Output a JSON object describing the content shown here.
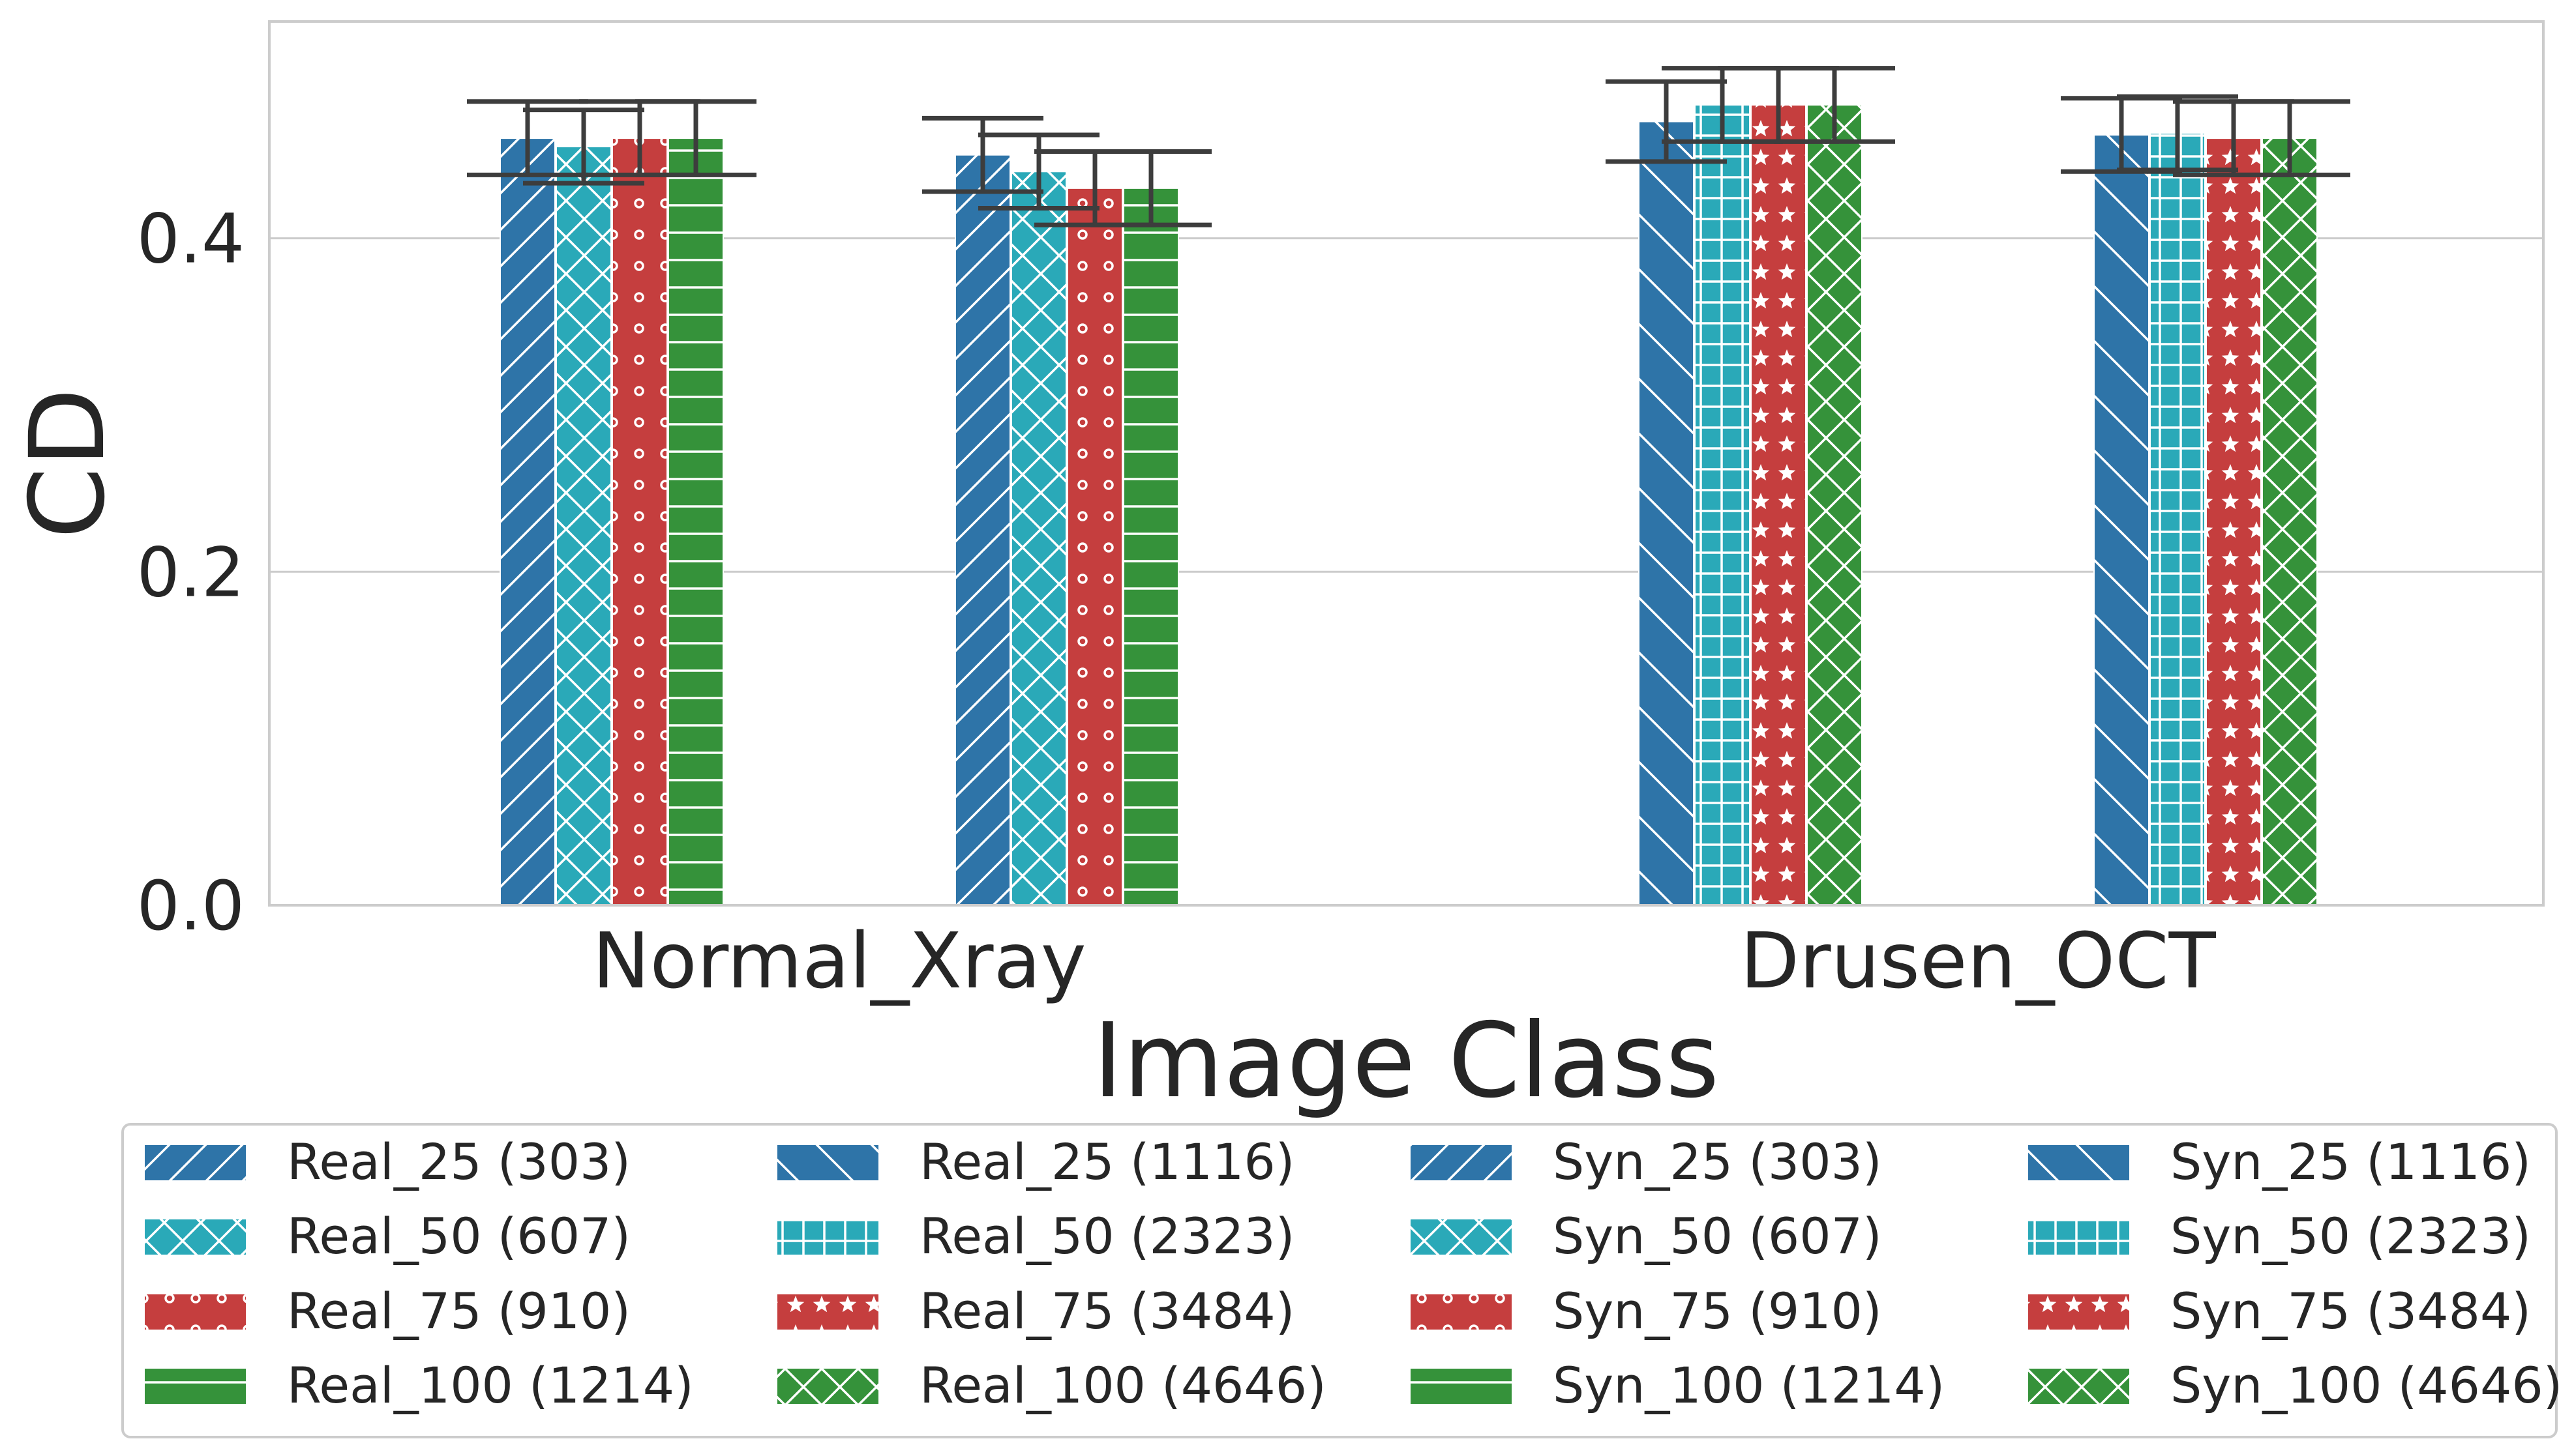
{
  "chart_data": {
    "type": "bar",
    "title": "",
    "xlabel": "Image Class",
    "ylabel": "CD",
    "ylim": [
      0,
      0.53
    ],
    "yticks": [
      "0.0",
      "0.2",
      "0.4"
    ],
    "categories": [
      "Normal_Xray",
      "Drusen_OCT"
    ],
    "series": [
      {
        "name": "Real_25 (303)",
        "group": "Normal_Xray",
        "subgroup": "Real",
        "color": "#2e74a8",
        "pattern": "diag-fwd",
        "value": 0.46,
        "err": 0.022
      },
      {
        "name": "Real_50 (607)",
        "group": "Normal_Xray",
        "subgroup": "Real",
        "color": "#2aa9b8",
        "pattern": "cross-x",
        "value": 0.455,
        "err": 0.022
      },
      {
        "name": "Real_75 (910)",
        "group": "Normal_Xray",
        "subgroup": "Real",
        "color": "#c53e3e",
        "pattern": "rings",
        "value": 0.46,
        "err": 0.022
      },
      {
        "name": "Real_100 (1214)",
        "group": "Normal_Xray",
        "subgroup": "Real",
        "color": "#35923a",
        "pattern": "hlines",
        "value": 0.46,
        "err": 0.022
      },
      {
        "name": "Syn_25 (303)",
        "group": "Normal_Xray",
        "subgroup": "Syn",
        "color": "#2e74a8",
        "pattern": "diag-fwd",
        "value": 0.45,
        "err": 0.022
      },
      {
        "name": "Syn_50 (607)",
        "group": "Normal_Xray",
        "subgroup": "Syn",
        "color": "#2aa9b8",
        "pattern": "cross-x",
        "value": 0.44,
        "err": 0.022
      },
      {
        "name": "Syn_75 (910)",
        "group": "Normal_Xray",
        "subgroup": "Syn",
        "color": "#c53e3e",
        "pattern": "rings",
        "value": 0.43,
        "err": 0.022
      },
      {
        "name": "Syn_100 (1214)",
        "group": "Normal_Xray",
        "subgroup": "Syn",
        "color": "#35923a",
        "pattern": "hlines",
        "value": 0.43,
        "err": 0.022
      },
      {
        "name": "Real_25 (1116)",
        "group": "Drusen_OCT",
        "subgroup": "Real",
        "color": "#2e74a8",
        "pattern": "diag-back",
        "value": 0.47,
        "err": 0.024
      },
      {
        "name": "Real_50 (2323)",
        "group": "Drusen_OCT",
        "subgroup": "Real",
        "color": "#2aa9b8",
        "pattern": "grid",
        "value": 0.48,
        "err": 0.022
      },
      {
        "name": "Real_75 (3484)",
        "group": "Drusen_OCT",
        "subgroup": "Real",
        "color": "#c53e3e",
        "pattern": "stars",
        "value": 0.48,
        "err": 0.022
      },
      {
        "name": "Real_100 (4646)",
        "group": "Drusen_OCT",
        "subgroup": "Real",
        "color": "#35923a",
        "pattern": "cross-x",
        "value": 0.48,
        "err": 0.022
      },
      {
        "name": "Syn_25 (1116)",
        "group": "Drusen_OCT",
        "subgroup": "Syn",
        "color": "#2e74a8",
        "pattern": "diag-back",
        "value": 0.462,
        "err": 0.022
      },
      {
        "name": "Syn_50 (2323)",
        "group": "Drusen_OCT",
        "subgroup": "Syn",
        "color": "#2aa9b8",
        "pattern": "grid",
        "value": 0.463,
        "err": 0.022
      },
      {
        "name": "Syn_75 (3484)",
        "group": "Drusen_OCT",
        "subgroup": "Syn",
        "color": "#c53e3e",
        "pattern": "stars",
        "value": 0.46,
        "err": 0.022
      },
      {
        "name": "Syn_100 (4646)",
        "group": "Drusen_OCT",
        "subgroup": "Syn",
        "color": "#35923a",
        "pattern": "cross-x",
        "value": 0.46,
        "err": 0.022
      }
    ],
    "legend": {
      "placement": "bottom",
      "columns": [
        [
          "Real_25 (303)",
          "Real_50 (607)",
          "Real_75 (910)",
          "Real_100 (1214)"
        ],
        [
          "Real_25 (1116)",
          "Real_50 (2323)",
          "Real_75 (3484)",
          "Real_100 (4646)"
        ],
        [
          "Syn_25 (303)",
          "Syn_50 (607)",
          "Syn_75 (910)",
          "Syn_100 (1214)"
        ],
        [
          "Syn_25 (1116)",
          "Syn_50 (2323)",
          "Syn_75 (3484)",
          "Syn_100 (4646)"
        ]
      ]
    },
    "grid": true,
    "colors": {
      "grid": "#cccccc",
      "axis": "#cccccc",
      "errorbar": "#3d3d3d",
      "text": "#262626"
    }
  }
}
